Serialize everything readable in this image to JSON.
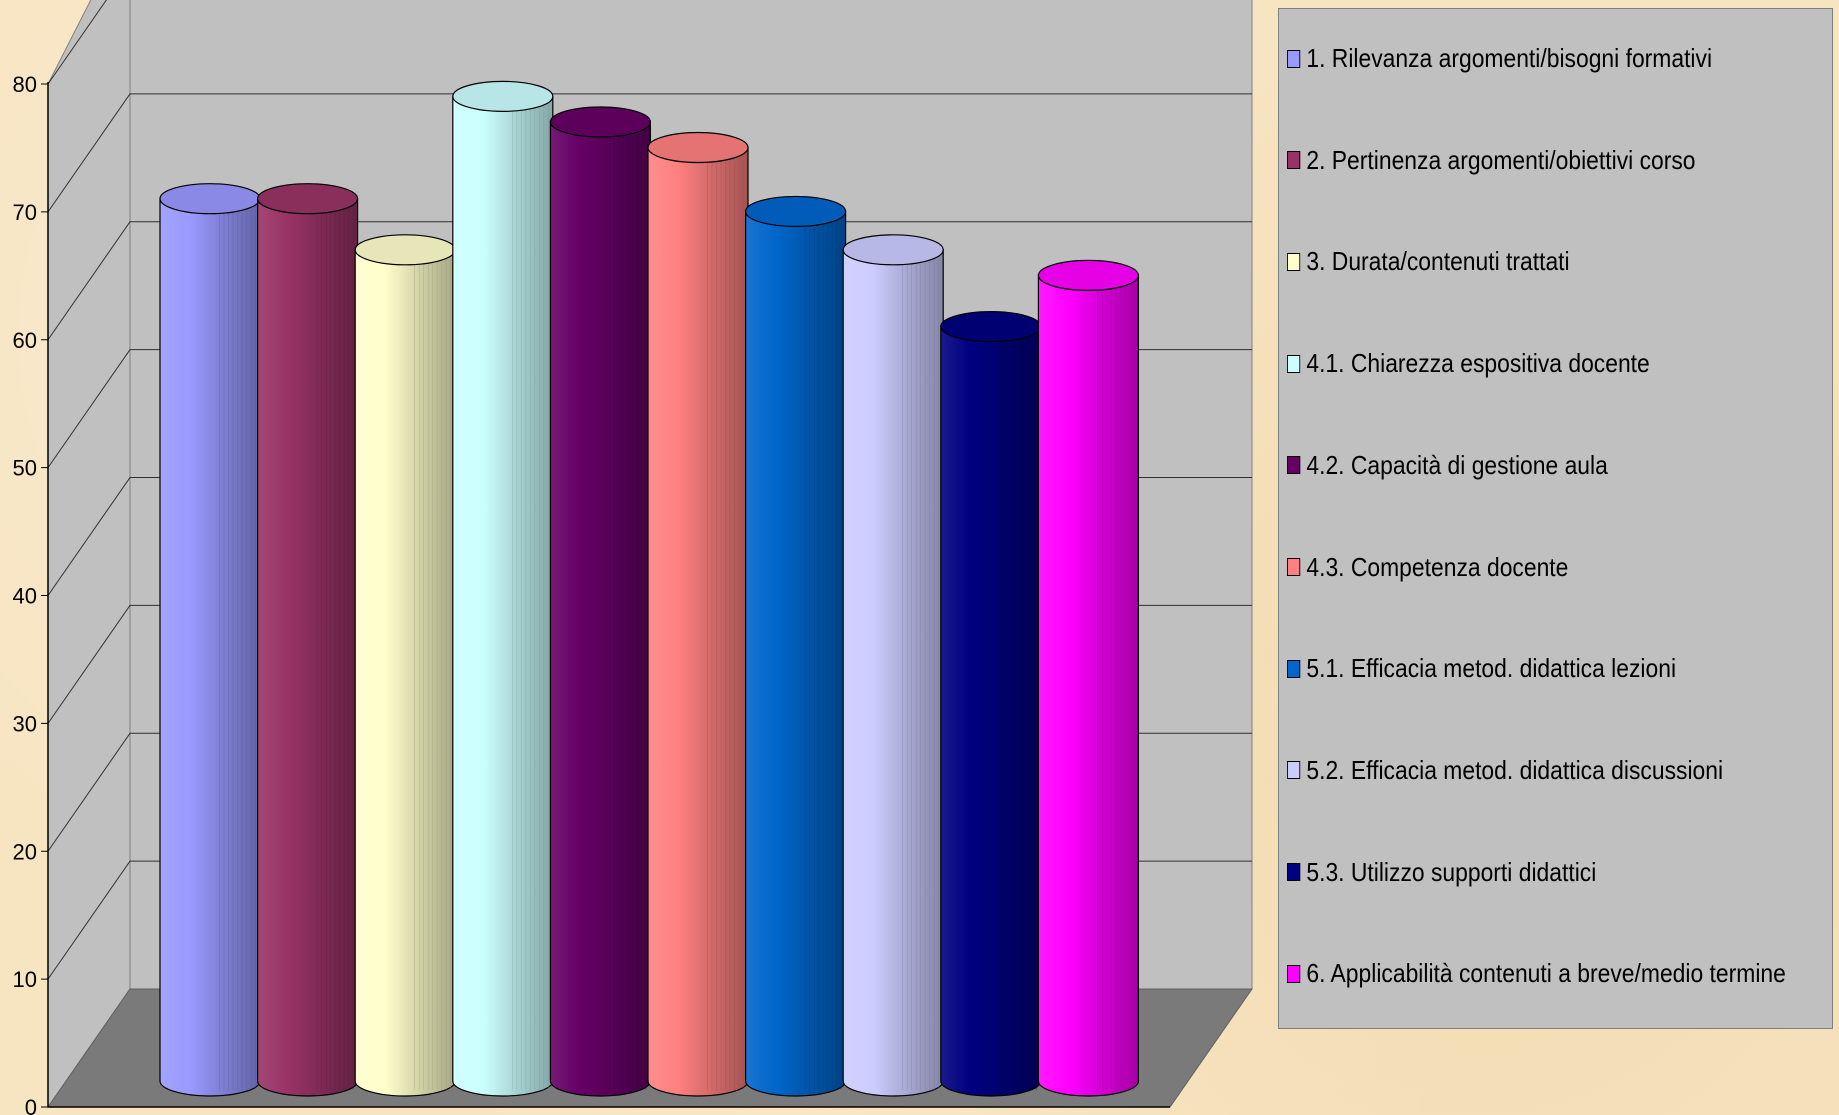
{
  "chart_data": {
    "type": "bar",
    "style": "3d-cylinder",
    "ylim": [
      0,
      80
    ],
    "yticks": [
      "0",
      "10",
      "20",
      "30",
      "40",
      "50",
      "60",
      "70",
      "80"
    ],
    "grid": true,
    "legend_position": "right",
    "series": [
      {
        "name": "1. Rilevanza argomenti/bisogni formativi",
        "value": 69,
        "color": "#9999ff"
      },
      {
        "name": "2. Pertinenza argomenti/obiettivi corso",
        "value": 69,
        "color": "#993366"
      },
      {
        "name": "3. Durata/contenuti trattati",
        "value": 65,
        "color": "#ffffcc"
      },
      {
        "name": "4.1. Chiarezza espositiva docente",
        "value": 77,
        "color": "#ccffff"
      },
      {
        "name": "4.2. Capacità di gestione aula",
        "value": 75,
        "color": "#660066"
      },
      {
        "name": "4.3. Competenza docente",
        "value": 73,
        "color": "#ff8080"
      },
      {
        "name": "5.1. Efficacia metod. didattica lezioni",
        "value": 68,
        "color": "#0066cc"
      },
      {
        "name": "5.2. Efficacia metod. didattica discussioni",
        "value": 65,
        "color": "#ccccff"
      },
      {
        "name": "5.3. Utilizzo supporti didattici",
        "value": 59,
        "color": "#000080"
      },
      {
        "name": "6. Applicabilità contenuti a breve/medio termine",
        "value": 63,
        "color": "#ff00ff"
      }
    ]
  }
}
